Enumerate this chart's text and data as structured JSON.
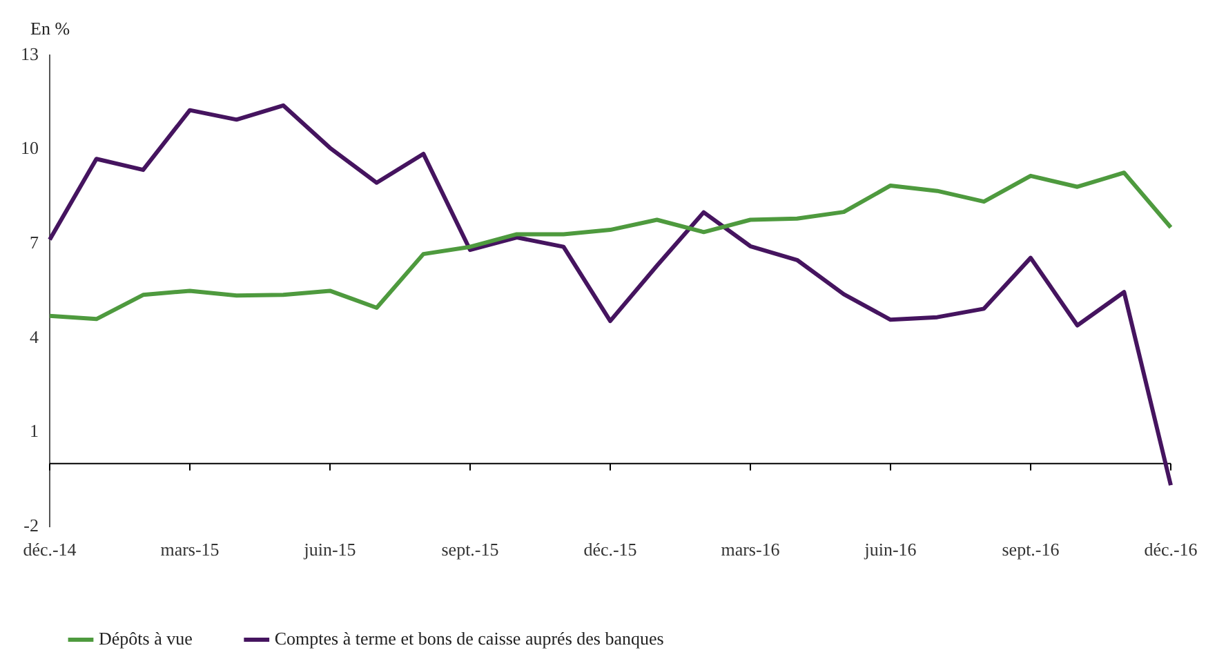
{
  "chart_data": {
    "type": "line",
    "ylabel": "En %",
    "categories": [
      "déc.-14",
      null,
      null,
      "mars-15",
      null,
      null,
      "juin-15",
      null,
      null,
      "sept.-15",
      null,
      null,
      "déc.-15",
      null,
      null,
      "mars-16",
      null,
      null,
      "juin-16",
      null,
      null,
      "sept.-16",
      null,
      null,
      "déc.-16"
    ],
    "series": [
      {
        "name": "Dépôts à vue",
        "color": "#4e9a3e",
        "values": [
          4.7,
          4.6,
          5.37,
          5.5,
          5.35,
          5.37,
          5.5,
          4.96,
          6.67,
          6.9,
          7.3,
          7.3,
          7.44,
          7.76,
          7.37,
          7.76,
          7.8,
          8.01,
          8.85,
          8.68,
          8.34,
          9.16,
          8.81,
          9.26,
          7.52
        ]
      },
      {
        "name": "Comptes à terme et bons de caisse auprés des banques",
        "color": "#45145f",
        "values": [
          7.13,
          9.7,
          9.35,
          11.25,
          10.95,
          11.4,
          10.05,
          8.94,
          9.86,
          6.8,
          7.2,
          6.9,
          4.54,
          6.3,
          8.0,
          6.92,
          6.48,
          5.39,
          4.58,
          4.66,
          4.93,
          6.55,
          4.4,
          5.46,
          -0.69
        ]
      }
    ],
    "ylim": [
      -2,
      13
    ],
    "yticks": [
      -2,
      1,
      4,
      7,
      10,
      13
    ],
    "ref_lines": [
      {
        "axis": "y",
        "value": 0,
        "color": "#000000"
      }
    ],
    "grid": false,
    "legend": "bottom",
    "line_style": "solid",
    "marker": "none"
  }
}
